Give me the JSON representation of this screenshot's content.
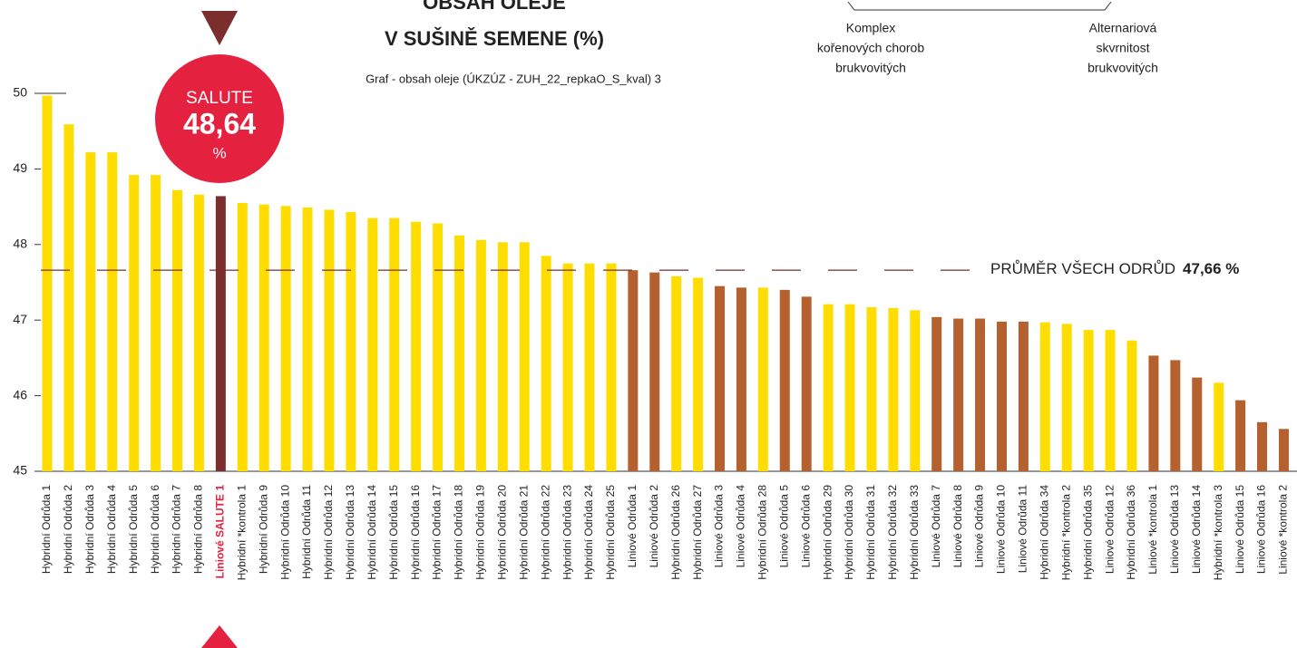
{
  "chart_data": {
    "type": "bar",
    "title_lines": [
      "OBSAH OLEJE",
      "V SUŠINĚ SEMENE (%)"
    ],
    "subtitle": "Graf - obsah oleje (ÚKZÚZ - ZUH_22_repkaO_S_kval) 3",
    "notes": [
      [
        "Komplex",
        "kořenových chorob",
        "brukvovitých"
      ],
      [
        "Alternariová",
        "skvrnitost",
        "brukvovitých"
      ]
    ],
    "callout": {
      "title": "SALUTE",
      "value_label": "48,64",
      "unit": "%"
    },
    "categories": [
      "Hybridní Odrůda 1",
      "Hybridní Odrůda 2",
      "Hybridní Odrůda 3",
      "Hybridní Odrůda 4",
      "Hybridní Odrůda 5",
      "Hybridní Odrůda 6",
      "Hybridní Odrůda 7",
      "Hybridní Odrůda 8",
      "Liniové SALUTE 1",
      "Hybridní *kontrola 1",
      "Hybridní Odrůda 9",
      "Hybridní Odrůda 10",
      "Hybridní Odrůda 11",
      "Hybridní Odrůda 12",
      "Hybridní Odrůda 13",
      "Hybridní Odrůda 14",
      "Hybridní Odrůda 15",
      "Hybridní Odrůda 16",
      "Hybridní Odrůda 17",
      "Hybridní Odrůda 18",
      "Hybridní Odrůda 19",
      "Hybridní Odrůda 20",
      "Hybridní Odrůda 21",
      "Hybridní Odrůda 22",
      "Hybridní Odrůda 23",
      "Hybridní Odrůda 24",
      "Hybridní Odrůda 25",
      "Liniové Odrůda 1",
      "Liniové Odrůda 2",
      "Hybridní Odrůda 26",
      "Hybridní Odrůda 27",
      "Liniové Odrůda 3",
      "Liniové Odrůda 4",
      "Hybridní Odrůda 28",
      "Liniové Odrůda 5",
      "Liniové Odrůda 6",
      "Hybridní Odrůda 29",
      "Hybridní Odrůda 30",
      "Hybridní Odrůda 31",
      "Hybridní Odrůda 32",
      "Hybridní Odrůda 33",
      "Liniové Odrůda 7",
      "Liniové Odrůda 8",
      "Liniové Odrůda 9",
      "Liniové Odrůda 10",
      "Liniové Odrůda 11",
      "Hybridní Odrůda 34",
      "Hybridní *kontrola 2",
      "Hybridní Odrůda 35",
      "Liniové Odrůda 12",
      "Hybridní Odrůda 36",
      "Liniové *kontrola 1",
      "Liniové Odrůda 13",
      "Liniové Odrůda 14",
      "Hybridní *kontrola 3",
      "Liniové Odrůda 15",
      "Liniové Odrůda 16",
      "Liniové *kontrola 2"
    ],
    "values": [
      49.97,
      49.59,
      49.22,
      49.22,
      48.92,
      48.92,
      48.72,
      48.66,
      48.64,
      48.55,
      48.53,
      48.51,
      48.49,
      48.46,
      48.43,
      48.35,
      48.35,
      48.3,
      48.28,
      48.12,
      48.06,
      48.03,
      48.03,
      47.85,
      47.75,
      47.75,
      47.75,
      47.66,
      47.63,
      47.58,
      47.56,
      47.45,
      47.43,
      47.43,
      47.4,
      47.31,
      47.21,
      47.21,
      47.17,
      47.16,
      47.13,
      47.04,
      47.02,
      47.02,
      46.98,
      46.98,
      46.97,
      46.95,
      46.87,
      46.87,
      46.73,
      46.53,
      46.47,
      46.24,
      46.17,
      45.94,
      45.65,
      45.56
    ],
    "colors": [
      "#ffdd00",
      "#ffdd00",
      "#ffdd00",
      "#ffdd00",
      "#ffdd00",
      "#ffdd00",
      "#ffdd00",
      "#ffdd00",
      "#7a2e2e",
      "#ffdd00",
      "#ffdd00",
      "#ffdd00",
      "#ffdd00",
      "#ffdd00",
      "#ffdd00",
      "#ffdd00",
      "#ffdd00",
      "#ffdd00",
      "#ffdd00",
      "#ffdd00",
      "#ffdd00",
      "#ffdd00",
      "#ffdd00",
      "#ffdd00",
      "#ffdd00",
      "#ffdd00",
      "#ffdd00",
      "#b5602f",
      "#b5602f",
      "#ffdd00",
      "#ffdd00",
      "#b5602f",
      "#b5602f",
      "#ffdd00",
      "#b5602f",
      "#b5602f",
      "#ffdd00",
      "#ffdd00",
      "#ffdd00",
      "#ffdd00",
      "#ffdd00",
      "#b5602f",
      "#b5602f",
      "#b5602f",
      "#b5602f",
      "#b5602f",
      "#ffdd00",
      "#ffdd00",
      "#ffdd00",
      "#ffdd00",
      "#ffdd00",
      "#b5602f",
      "#b5602f",
      "#b5602f",
      "#ffdd00",
      "#b5602f",
      "#b5602f",
      "#b5602f"
    ],
    "highlight_color": "#7a2e2e",
    "highlight_label_color": "#e4213f",
    "ylim": [
      45,
      50
    ],
    "yticks": [
      45,
      46,
      47,
      48,
      49,
      50
    ],
    "reference_line": {
      "value": 47.66,
      "label": "PRŮMĚR VŠECH ODRŮD",
      "value_label": "47,66 %",
      "color": "#7a2e2e"
    }
  }
}
